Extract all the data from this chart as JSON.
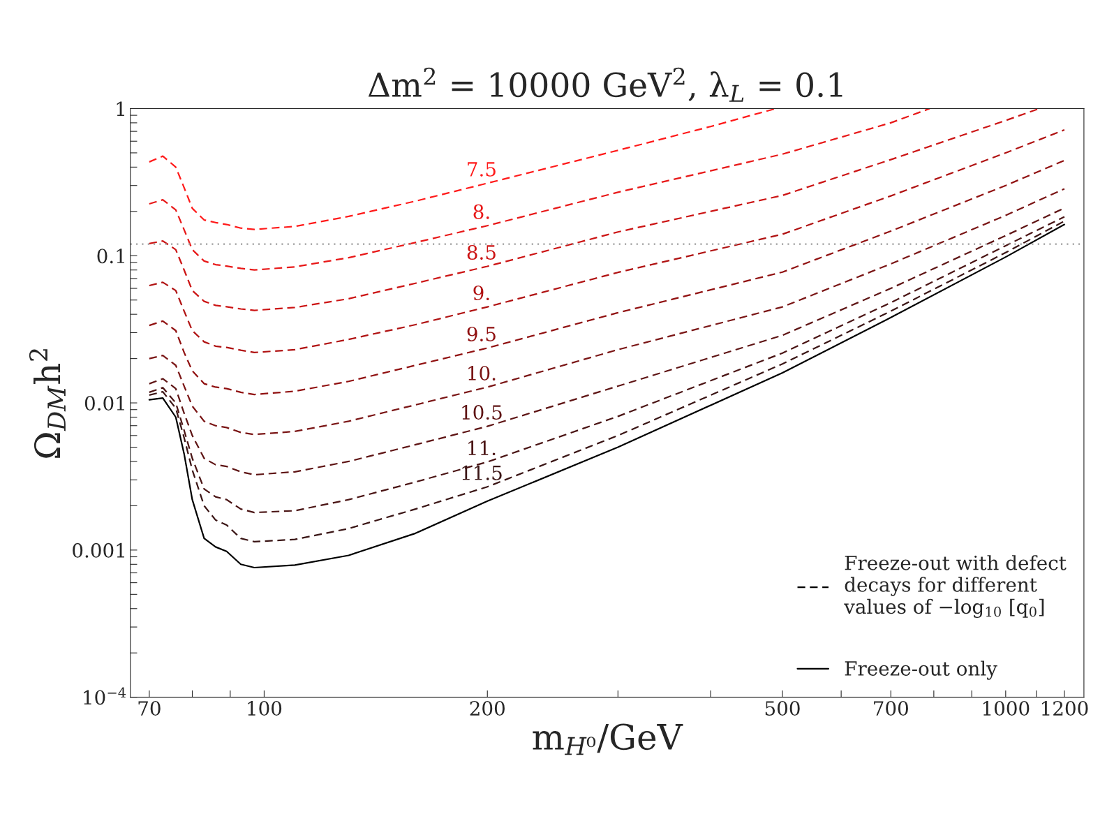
{
  "chart_data": {
    "type": "line",
    "title": "Δm$^{2}$ = 10000 GeV$^{2}$, λ$_{L}$ = 0.1",
    "xlabel": "m$_{H⁰}$/GeV",
    "ylabel": "Ω$_{DM}$h$^{2}$",
    "legend_title": "Freeze-out with defect\ndecays for different\nvalues of −log$_{10}$ [q$_{0}$]",
    "log": "xy",
    "grid": false,
    "legend": "bottom right",
    "xlim": [
      66,
      1275
    ],
    "ylim": [
      0.0001,
      1
    ],
    "xticks": [
      70,
      {
        "value": 80,
        "label": null
      },
      {
        "value": 90,
        "label": null
      },
      100,
      200,
      {
        "value": 300,
        "label": null
      },
      {
        "value": 400,
        "label": null
      },
      500,
      {
        "value": 600,
        "label": null
      },
      700,
      {
        "value": 800,
        "label": null
      },
      {
        "value": 900,
        "label": null
      },
      1000,
      {
        "value": 1100,
        "label": null
      },
      1200
    ],
    "yticks": [
      {
        "value": 0.0001,
        "label": "10$^{−4}$"
      },
      {
        "value": 0.0002,
        "label": null
      },
      {
        "value": 0.0003,
        "label": null
      },
      {
        "value": 0.0004,
        "label": null
      },
      {
        "value": 0.0005,
        "label": null
      },
      {
        "value": 0.0006,
        "label": null
      },
      {
        "value": 0.0007,
        "label": null
      },
      {
        "value": 0.0008,
        "label": null
      },
      {
        "value": 0.0009,
        "label": null
      },
      0.001,
      {
        "value": 0.002,
        "label": null
      },
      {
        "value": 0.003,
        "label": null
      },
      {
        "value": 0.004,
        "label": null
      },
      {
        "value": 0.005,
        "label": null
      },
      {
        "value": 0.006,
        "label": null
      },
      {
        "value": 0.007,
        "label": null
      },
      {
        "value": 0.008,
        "label": null
      },
      {
        "value": 0.009,
        "label": null
      },
      0.01,
      {
        "value": 0.02,
        "label": null
      },
      {
        "value": 0.03,
        "label": null
      },
      {
        "value": 0.04,
        "label": null
      },
      {
        "value": 0.05,
        "label": null
      },
      {
        "value": 0.06,
        "label": null
      },
      {
        "value": 0.07,
        "label": null
      },
      {
        "value": 0.08,
        "label": null
      },
      {
        "value": 0.09,
        "label": null
      },
      0.1,
      {
        "value": 0.2,
        "label": null
      },
      {
        "value": 0.3,
        "label": null
      },
      {
        "value": 0.4,
        "label": null
      },
      {
        "value": 0.5,
        "label": null
      },
      {
        "value": 0.6,
        "label": null
      },
      {
        "value": 0.7,
        "label": null
      },
      {
        "value": 0.8,
        "label": null
      },
      {
        "value": 0.9,
        "label": null
      },
      1
    ],
    "ref_lines": [
      {
        "axis": "y",
        "value": 0.12,
        "color": "#999999",
        "line_style": "dotted"
      }
    ],
    "series": [
      {
        "name": "7.5",
        "color": "#ff1a1a",
        "line_style": "dashed",
        "x": [
          70,
          73,
          76,
          78,
          80,
          83,
          86,
          89,
          93,
          97,
          110,
          130,
          160,
          200,
          300,
          400,
          490
        ],
        "values": [
          0.434,
          0.475,
          0.4,
          0.29,
          0.21,
          0.175,
          0.168,
          0.163,
          0.154,
          0.151,
          0.158,
          0.185,
          0.235,
          0.311,
          0.52,
          0.755,
          1.0
        ]
      },
      {
        "name": "8.",
        "color": "#e81818",
        "line_style": "dashed",
        "x": [
          70,
          73,
          76,
          78,
          80,
          83,
          86,
          89,
          93,
          97,
          110,
          130,
          160,
          200,
          300,
          500,
          700,
          790
        ],
        "values": [
          0.225,
          0.24,
          0.205,
          0.15,
          0.11,
          0.092,
          0.087,
          0.085,
          0.082,
          0.08,
          0.084,
          0.097,
          0.123,
          0.16,
          0.27,
          0.49,
          0.8,
          1.0
        ]
      },
      {
        "name": "8.5",
        "color": "#cc1414",
        "line_style": "dashed",
        "x": [
          70,
          73,
          76,
          78,
          80,
          83,
          86,
          89,
          93,
          97,
          110,
          130,
          160,
          200,
          300,
          500,
          700,
          1000,
          1110
        ],
        "values": [
          0.121,
          0.126,
          0.11,
          0.08,
          0.058,
          0.049,
          0.046,
          0.045,
          0.0435,
          0.0425,
          0.0445,
          0.051,
          0.065,
          0.0847,
          0.145,
          0.257,
          0.45,
          0.83,
          1.0
        ]
      },
      {
        "name": "9.",
        "color": "#b01212",
        "line_style": "dashed",
        "x": [
          70,
          73,
          76,
          78,
          80,
          83,
          86,
          89,
          93,
          97,
          110,
          130,
          160,
          200,
          300,
          500,
          700,
          1000,
          1200
        ],
        "values": [
          0.0627,
          0.066,
          0.058,
          0.042,
          0.031,
          0.026,
          0.0243,
          0.0238,
          0.0228,
          0.022,
          0.023,
          0.027,
          0.034,
          0.0449,
          0.077,
          0.14,
          0.255,
          0.5,
          0.716
        ]
      },
      {
        "name": "9.5",
        "color": "#901010",
        "line_style": "dashed",
        "x": [
          70,
          73,
          76,
          78,
          80,
          83,
          86,
          89,
          93,
          97,
          110,
          130,
          160,
          200,
          300,
          500,
          700,
          1000,
          1200
        ],
        "values": [
          0.0336,
          0.036,
          0.031,
          0.022,
          0.0165,
          0.0135,
          0.0128,
          0.0125,
          0.0118,
          0.0114,
          0.012,
          0.014,
          0.018,
          0.0236,
          0.041,
          0.0774,
          0.147,
          0.3,
          0.444
        ]
      },
      {
        "name": "10.",
        "color": "#7a1515",
        "line_style": "dashed",
        "x": [
          70,
          73,
          76,
          78,
          80,
          83,
          86,
          89,
          93,
          97,
          110,
          130,
          160,
          200,
          300,
          500,
          700,
          1000,
          1200
        ],
        "values": [
          0.02,
          0.021,
          0.018,
          0.013,
          0.0095,
          0.0075,
          0.007,
          0.0068,
          0.0063,
          0.0061,
          0.0064,
          0.0075,
          0.0097,
          0.0128,
          0.023,
          0.0449,
          0.088,
          0.188,
          0.285
        ]
      },
      {
        "name": "10.5",
        "color": "#5e1414",
        "line_style": "dashed",
        "x": [
          70,
          73,
          76,
          78,
          80,
          83,
          86,
          89,
          93,
          97,
          110,
          130,
          160,
          200,
          300,
          500,
          700,
          1000,
          1200
        ],
        "values": [
          0.0135,
          0.0146,
          0.0125,
          0.0085,
          0.006,
          0.0042,
          0.0038,
          0.0037,
          0.0034,
          0.00325,
          0.0034,
          0.004,
          0.0052,
          0.00693,
          0.013,
          0.0288,
          0.06,
          0.137,
          0.211
        ]
      },
      {
        "name": "11.",
        "color": "#4a1414",
        "line_style": "dashed",
        "x": [
          70,
          73,
          76,
          78,
          80,
          83,
          86,
          89,
          93,
          97,
          110,
          130,
          160,
          200,
          300,
          500,
          700,
          1000,
          1200
        ],
        "values": [
          0.0118,
          0.0127,
          0.01,
          0.0065,
          0.0042,
          0.0026,
          0.0023,
          0.0022,
          0.0019,
          0.0018,
          0.00185,
          0.0022,
          0.0029,
          0.00397,
          0.0081,
          0.0218,
          0.048,
          0.117,
          0.184
        ]
      },
      {
        "name": "11.5",
        "color": "#3a1515",
        "line_style": "dashed",
        "x": [
          70,
          73,
          76,
          78,
          80,
          83,
          86,
          89,
          93,
          97,
          110,
          130,
          160,
          200,
          300,
          500,
          700,
          1000,
          1200
        ],
        "values": [
          0.0113,
          0.0119,
          0.0092,
          0.0058,
          0.0035,
          0.002,
          0.0016,
          0.00148,
          0.0012,
          0.00114,
          0.00118,
          0.0014,
          0.0019,
          0.00269,
          0.006,
          0.0184,
          0.042,
          0.105,
          0.172
        ]
      },
      {
        "name": "Freeze-out only",
        "color": "#000000",
        "line_style": "solid",
        "x": [
          70,
          73,
          76,
          78,
          80,
          83,
          86,
          89,
          93,
          97,
          110,
          130,
          160,
          200,
          300,
          500,
          700,
          1000,
          1200
        ],
        "values": [
          0.0105,
          0.0108,
          0.008,
          0.0045,
          0.0022,
          0.0012,
          0.00105,
          0.00098,
          0.0008,
          0.00076,
          0.00079,
          0.00092,
          0.0013,
          0.00215,
          0.005,
          0.016,
          0.038,
          0.098,
          0.163
        ]
      }
    ]
  }
}
